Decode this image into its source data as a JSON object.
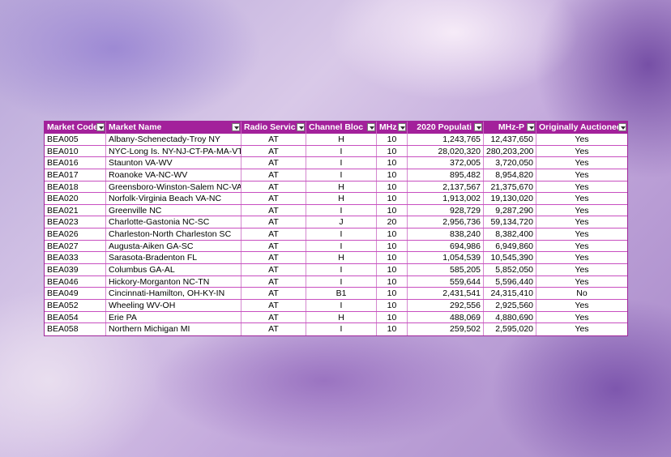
{
  "table": {
    "header": [
      "Market Code",
      "Market Name",
      "Radio Servic",
      "Channel Bloc",
      "MHz",
      "2020 Populati",
      "MHz-P",
      "Originally Auctioned"
    ],
    "rows": [
      [
        "BEA005",
        "Albany-Schenectady-Troy NY",
        "AT",
        "H",
        "10",
        "1,243,765",
        "12,437,650",
        "Yes"
      ],
      [
        "BEA010",
        "NYC-Long Is. NY-NJ-CT-PA-MA-VT",
        "AT",
        "I",
        "10",
        "28,020,320",
        "280,203,200",
        "Yes"
      ],
      [
        "BEA016",
        "Staunton VA-WV",
        "AT",
        "I",
        "10",
        "372,005",
        "3,720,050",
        "Yes"
      ],
      [
        "BEA017",
        "Roanoke VA-NC-WV",
        "AT",
        "I",
        "10",
        "895,482",
        "8,954,820",
        "Yes"
      ],
      [
        "BEA018",
        "Greensboro-Winston-Salem NC-VA",
        "AT",
        "H",
        "10",
        "2,137,567",
        "21,375,670",
        "Yes"
      ],
      [
        "BEA020",
        "Norfolk-Virginia Beach VA-NC",
        "AT",
        "H",
        "10",
        "1,913,002",
        "19,130,020",
        "Yes"
      ],
      [
        "BEA021",
        "Greenville NC",
        "AT",
        "I",
        "10",
        "928,729",
        "9,287,290",
        "Yes"
      ],
      [
        "BEA023",
        "Charlotte-Gastonia NC-SC",
        "AT",
        "J",
        "20",
        "2,956,736",
        "59,134,720",
        "Yes"
      ],
      [
        "BEA026",
        "Charleston-North Charleston SC",
        "AT",
        "I",
        "10",
        "838,240",
        "8,382,400",
        "Yes"
      ],
      [
        "BEA027",
        "Augusta-Aiken GA-SC",
        "AT",
        "I",
        "10",
        "694,986",
        "6,949,860",
        "Yes"
      ],
      [
        "BEA033",
        "Sarasota-Bradenton FL",
        "AT",
        "H",
        "10",
        "1,054,539",
        "10,545,390",
        "Yes"
      ],
      [
        "BEA039",
        "Columbus GA-AL",
        "AT",
        "I",
        "10",
        "585,205",
        "5,852,050",
        "Yes"
      ],
      [
        "BEA046",
        "Hickory-Morganton NC-TN",
        "AT",
        "I",
        "10",
        "559,644",
        "5,596,440",
        "Yes"
      ],
      [
        "BEA049",
        "Cincinnati-Hamilton, OH-KY-IN",
        "AT",
        "B1",
        "10",
        "2,431,541",
        "24,315,410",
        "No"
      ],
      [
        "BEA052",
        "Wheeling WV-OH",
        "AT",
        "I",
        "10",
        "292,556",
        "2,925,560",
        "Yes"
      ],
      [
        "BEA054",
        "Erie PA",
        "AT",
        "H",
        "10",
        "488,069",
        "4,880,690",
        "Yes"
      ],
      [
        "BEA058",
        "Northern Michigan MI",
        "AT",
        "I",
        "10",
        "259,502",
        "2,595,020",
        "Yes"
      ]
    ]
  }
}
